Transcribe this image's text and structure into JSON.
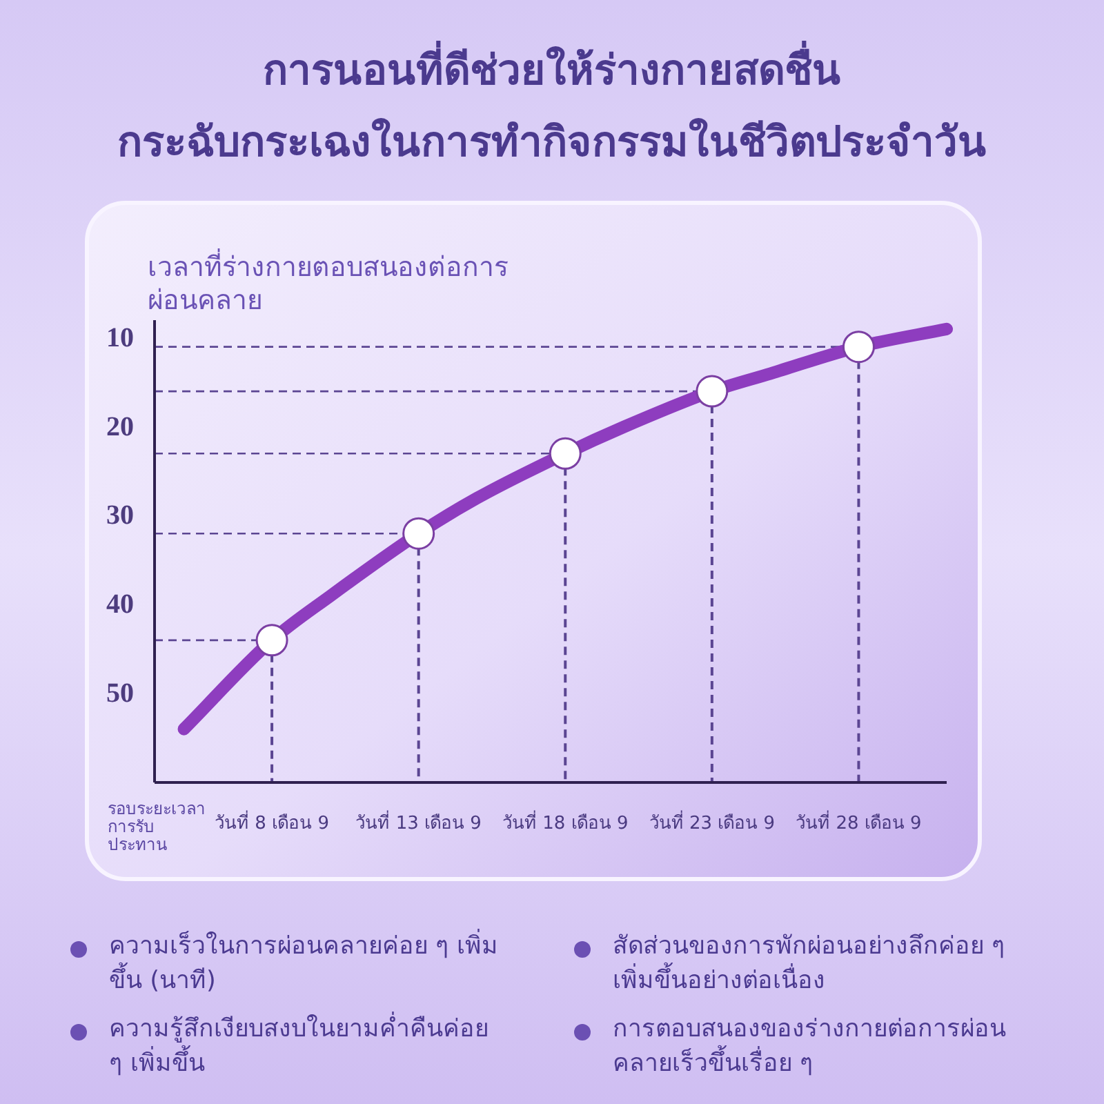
{
  "chart_data": {
    "type": "line",
    "title": "การนอนที่ดีช่วยให้ร่างกายสดชื่นกระฉับกระเฉงในการทำกิจกรรมในชีวิตประจำวัน",
    "xlabel": "รอบระยะเวลาการรับประทาน",
    "ylabel": "เวลาที่ร่างกายตอบสนองต่อการผ่อนคลาย",
    "xlim": [
      "--09-04",
      "--10-01"
    ],
    "xticks": [
      {
        "value": "--09-08",
        "label": "วันที่ 8 เดือน 9"
      },
      {
        "value": "--09-13",
        "label": "วันที่ 13 เดือน 9"
      },
      {
        "value": "--09-18",
        "label": "วันที่ 18 เดือน 9"
      },
      {
        "value": "--09-23",
        "label": "วันที่ 23 เดือน 9"
      },
      {
        "value": "--09-28",
        "label": "วันที่ 28 เดือน 9"
      }
    ],
    "ylim": [
      60,
      8
    ],
    "yticks": [
      10,
      20,
      30,
      40,
      50
    ],
    "series": [
      {
        "type": "line",
        "color": "#8e3dbf",
        "x": [
          "--09-05",
          "--09-08",
          "--09-10",
          "--09-13",
          "--09-15",
          "--09-18",
          "--09-20",
          "--09-23",
          "--09-25",
          "--09-28",
          "--10-01"
        ],
        "values": [
          54,
          44,
          39,
          32,
          28,
          23,
          20,
          16,
          14,
          11,
          9
        ]
      },
      {
        "type": "scatter",
        "color": "#ffffff",
        "marker": "circle",
        "x": [
          "--09-08",
          "--09-13",
          "--09-18",
          "--09-23",
          "--09-28"
        ],
        "values": [
          44,
          32,
          23,
          16,
          11
        ]
      }
    ],
    "ref_lines": [
      {
        "axis": "y",
        "value": 44,
        "color": "#5b4592",
        "line_style": "dashed"
      },
      {
        "axis": "y",
        "value": 32,
        "color": "#5b4592",
        "line_style": "dashed"
      },
      {
        "axis": "y",
        "value": 23,
        "color": "#5b4592",
        "line_style": "dashed"
      },
      {
        "axis": "y",
        "value": 16,
        "color": "#5b4592",
        "line_style": "dashed"
      },
      {
        "axis": "y",
        "value": 11,
        "color": "#5b4592",
        "line_style": "dashed"
      },
      {
        "axis": "x",
        "value": "--09-08",
        "color": "#5b4592",
        "line_style": "dashed"
      },
      {
        "axis": "x",
        "value": "--09-13",
        "color": "#5b4592",
        "line_style": "dashed"
      },
      {
        "axis": "x",
        "value": "--09-18",
        "color": "#5b4592",
        "line_style": "dashed"
      },
      {
        "axis": "x",
        "value": "--09-23",
        "color": "#5b4592",
        "line_style": "dashed"
      },
      {
        "axis": "x",
        "value": "--09-28",
        "color": "#5b4592",
        "line_style": "dashed"
      }
    ],
    "annotations": [
      "ความเร็วในการผ่อนคลายค่อย ๆ เพิ่มขึ้น (นาที)",
      "สัดส่วนของการพักผ่อนอย่างลึกค่อย ๆ เพิ่มขึ้นอย่างต่อเนื่อง",
      "ความรู้สึกเงียบสงบในยามค่ำคืนค่อย ๆ เพิ่มขึ้น",
      "การตอบสนองของร่างกายต่อการผ่อนคลายเร็วขึ้นเรื่อย ๆ"
    ]
  }
}
